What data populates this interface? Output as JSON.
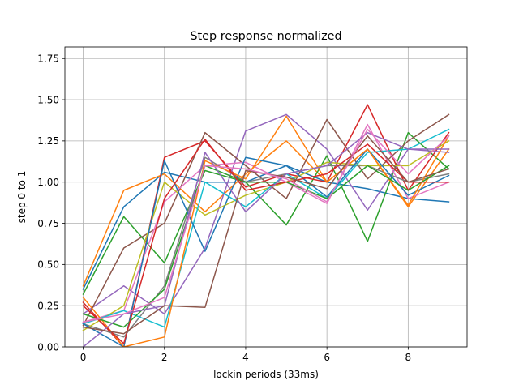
{
  "chart_data": {
    "type": "line",
    "title": "Step response normalized",
    "xlabel": "lockin periods (33ms)",
    "ylabel": "step 0 to 1",
    "xlim": [
      -0.45,
      9.45
    ],
    "ylim": [
      0,
      1.82
    ],
    "x": [
      0,
      1,
      2,
      3,
      4,
      5,
      6,
      7,
      8,
      9
    ],
    "xticks": [
      0,
      2,
      4,
      6,
      8
    ],
    "xtick_labels": [
      "0",
      "2",
      "4",
      "6",
      "8"
    ],
    "yticks": [
      0,
      0.25,
      0.5,
      0.75,
      1.0,
      1.25,
      1.5,
      1.75
    ],
    "ytick_labels": [
      "0.00",
      "0.25",
      "0.50",
      "0.75",
      "1.00",
      "1.25",
      "1.50",
      "1.75"
    ],
    "grid": true,
    "series": [
      {
        "color": "#1f77b4",
        "values": [
          0.35,
          0.85,
          1.06,
          1.0,
          1.0,
          1.1,
          1.0,
          0.96,
          0.9,
          0.88
        ]
      },
      {
        "color": "#ff7f0e",
        "values": [
          0.37,
          0.95,
          1.05,
          0.82,
          1.05,
          1.25,
          1.0,
          1.2,
          0.85,
          1.2
        ]
      },
      {
        "color": "#2ca02c",
        "values": [
          0.32,
          0.79,
          0.51,
          1.07,
          1.0,
          0.74,
          1.16,
          0.64,
          1.3,
          1.08
        ]
      },
      {
        "color": "#d62728",
        "values": [
          0.27,
          0.0,
          1.15,
          1.25,
          0.97,
          1.05,
          1.0,
          1.47,
          0.95,
          1.3
        ]
      },
      {
        "color": "#9467bd",
        "values": [
          0.2,
          0.37,
          0.2,
          0.6,
          1.31,
          1.41,
          1.2,
          0.83,
          1.2,
          1.18
        ]
      },
      {
        "color": "#8c564b",
        "values": [
          0.13,
          0.6,
          0.75,
          1.3,
          1.1,
          0.9,
          1.38,
          1.02,
          1.25,
          1.41
        ]
      },
      {
        "color": "#e377c2",
        "values": [
          0.15,
          0.22,
          0.88,
          1.1,
          1.12,
          1.0,
          0.87,
          1.35,
          0.9,
          1.0
        ]
      },
      {
        "color": "#7f7f7f",
        "values": [
          0.14,
          0.06,
          0.37,
          1.15,
          1.0,
          1.05,
          1.1,
          1.1,
          1.0,
          1.05
        ]
      },
      {
        "color": "#bcbd22",
        "values": [
          0.1,
          0.25,
          1.0,
          0.8,
          0.92,
          1.0,
          1.12,
          1.1,
          1.1,
          1.25
        ]
      },
      {
        "color": "#17becf",
        "values": [
          0.14,
          0.22,
          0.12,
          1.0,
          0.85,
          1.05,
          0.9,
          1.18,
          1.2,
          1.32
        ]
      },
      {
        "color": "#1f77b4",
        "values": [
          0.14,
          0.0,
          1.13,
          0.58,
          1.15,
          1.1,
          0.91,
          1.2,
          0.92,
          1.04
        ]
      },
      {
        "color": "#ff7f0e",
        "values": [
          0.3,
          0.0,
          0.06,
          1.13,
          1.02,
          1.4,
          1.0,
          1.2,
          0.86,
          1.28
        ]
      },
      {
        "color": "#2ca02c",
        "values": [
          0.2,
          0.12,
          0.35,
          1.1,
          1.0,
          1.0,
          0.9,
          1.1,
          0.95,
          1.1
        ]
      },
      {
        "color": "#d62728",
        "values": [
          0.25,
          0.02,
          0.9,
          1.26,
          0.95,
          1.0,
          1.05,
          1.23,
          1.0,
          1.0
        ]
      },
      {
        "color": "#9467bd",
        "values": [
          0.0,
          0.2,
          0.25,
          1.18,
          0.82,
          1.05,
          1.1,
          1.3,
          1.2,
          1.2
        ]
      },
      {
        "color": "#8c564b",
        "values": [
          0.12,
          0.08,
          0.25,
          0.24,
          1.07,
          1.03,
          0.96,
          1.28,
          1.0,
          1.08
        ]
      },
      {
        "color": "#e377c2",
        "values": [
          0.15,
          0.2,
          0.3,
          1.1,
          1.08,
          1.02,
          0.88,
          1.32,
          1.05,
          1.28
        ]
      }
    ]
  }
}
